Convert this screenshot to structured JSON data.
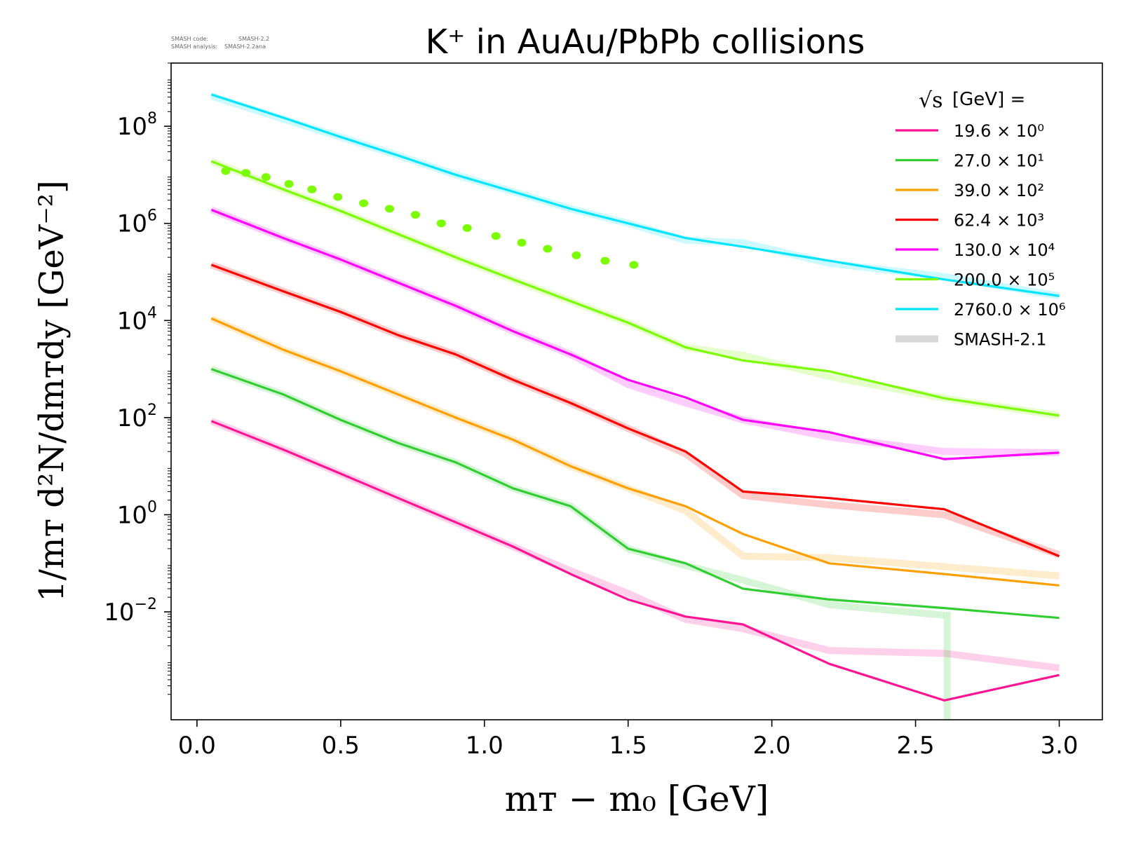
{
  "meta": {
    "code_label": "SMASH code:",
    "code_value": "SMASH-2.2",
    "analysis_label": "SMASH analysis:",
    "analysis_value": "SMASH-2.2ana"
  },
  "chart_data": {
    "type": "line",
    "title": "K⁺ in AuAu/PbPb collisions",
    "xlabel": "mᴛ − m₀  [GeV]",
    "ylabel": "1/mᴛ d²N/dmᴛdy  [GeV⁻²]",
    "x_scale": "linear",
    "y_scale": "log",
    "xlim": [
      -0.09,
      3.15
    ],
    "ylim": [
      6e-05,
      2000000000
    ],
    "x_ticks": [
      {
        "value": 0.0,
        "label": "0.0"
      },
      {
        "value": 0.5,
        "label": "0.5"
      },
      {
        "value": 1.0,
        "label": "1.0"
      },
      {
        "value": 1.5,
        "label": "1.5"
      },
      {
        "value": 2.0,
        "label": "2.0"
      },
      {
        "value": 2.5,
        "label": "2.5"
      },
      {
        "value": 3.0,
        "label": "3.0"
      }
    ],
    "y_ticks": [
      {
        "value": 0.01,
        "base": "10",
        "exp": "−2"
      },
      {
        "value": 1,
        "base": "10",
        "exp": "0"
      },
      {
        "value": 100,
        "base": "10",
        "exp": "2"
      },
      {
        "value": 10000,
        "base": "10",
        "exp": "4"
      },
      {
        "value": 1000000,
        "base": "10",
        "exp": "6"
      },
      {
        "value": 100000000,
        "base": "10",
        "exp": "8"
      }
    ],
    "grid": false,
    "legend": {
      "placement": "top-right",
      "title_prefix": "√s",
      "title_suffix": " [GeV] =",
      "reference_label": "SMASH-2.1",
      "reference_color": "#d8d8d8"
    },
    "series": [
      {
        "name": "19.6 × 10⁰",
        "color": "#ff1493",
        "x": [
          0.05,
          0.3,
          0.5,
          0.7,
          0.9,
          1.1,
          1.3,
          1.5,
          1.7,
          1.9,
          2.2,
          2.6,
          3.0
        ],
        "y": [
          85,
          22,
          7,
          2.2,
          0.7,
          0.22,
          0.06,
          0.018,
          0.008,
          0.0055,
          0.00085,
          0.00015,
          0.0005
        ],
        "ref_y": [
          85,
          22,
          7,
          2.2,
          0.7,
          0.22,
          0.07,
          0.024,
          0.007,
          0.0045,
          0.0016,
          0.0014,
          0.0007
        ]
      },
      {
        "name": "27.0 × 10¹",
        "color": "#32cd32",
        "x": [
          0.05,
          0.3,
          0.5,
          0.7,
          0.9,
          1.1,
          1.3,
          1.5,
          1.7,
          1.9,
          2.2,
          2.6,
          3.0
        ],
        "y": [
          1000,
          300,
          90,
          30,
          12,
          3.5,
          1.5,
          0.2,
          0.1,
          0.03,
          0.018,
          0.012,
          0.0075
        ],
        "ref_y": [
          1000,
          300,
          90,
          30,
          12,
          3.5,
          1.5,
          0.2,
          0.09,
          0.045,
          0.014,
          0.0085
        ],
        "ref_tail": {
          "x": [
            2.6,
            2.61,
            2.61
          ],
          "y": [
            0.0085,
            0.0085,
            6e-05
          ]
        }
      },
      {
        "name": "39.0 × 10²",
        "color": "#ff9f00",
        "x": [
          0.05,
          0.3,
          0.5,
          0.7,
          0.9,
          1.1,
          1.3,
          1.5,
          1.7,
          1.9,
          2.2,
          2.6,
          3.0
        ],
        "y": [
          11000,
          2500,
          900,
          300,
          100,
          35,
          10,
          3.5,
          1.5,
          0.4,
          0.1,
          0.06,
          0.035
        ],
        "ref_y": [
          11000,
          2500,
          900,
          300,
          100,
          35,
          10,
          3.5,
          1.2,
          0.14,
          0.13,
          0.085,
          0.055
        ]
      },
      {
        "name": "62.4 × 10³",
        "color": "#ff0000",
        "x": [
          0.05,
          0.3,
          0.5,
          0.7,
          0.9,
          1.1,
          1.3,
          1.5,
          1.7,
          1.9,
          2.2,
          2.6,
          3.0
        ],
        "y": [
          140000,
          40000,
          15000,
          5000,
          2000,
          600,
          200,
          60,
          20,
          3,
          2.2,
          1.3,
          0.14
        ],
        "ref_y": [
          140000,
          40000,
          15000,
          5000,
          2000,
          600,
          200,
          60,
          18,
          2.5,
          1.6,
          1.0,
          0.15
        ]
      },
      {
        "name": "130.0 × 10⁴",
        "color": "#ff00ff",
        "x": [
          0.05,
          0.3,
          0.5,
          0.7,
          0.9,
          1.1,
          1.3,
          1.5,
          1.7,
          1.9,
          2.2,
          2.6,
          3.0
        ],
        "y": [
          1900000,
          500000,
          180000,
          60000,
          20000,
          6000,
          2000,
          600,
          260,
          90,
          50,
          14,
          19
        ],
        "ref_y": [
          1900000,
          500000,
          180000,
          60000,
          20000,
          6000,
          2000,
          480,
          200,
          90,
          40,
          20,
          19
        ]
      },
      {
        "name": "200.0 × 10⁵",
        "color": "#7cfc00",
        "x": [
          0.05,
          0.3,
          0.5,
          0.7,
          0.9,
          1.1,
          1.3,
          1.5,
          1.7,
          1.9,
          2.2,
          2.6,
          3.0
        ],
        "y": [
          19000000,
          5000000,
          1800000,
          600000,
          200000,
          70000,
          25000,
          9000,
          2800,
          1500,
          900,
          250,
          110
        ],
        "ref_y": [
          19000000,
          5000000,
          1800000,
          600000,
          200000,
          70000,
          25000,
          9000,
          2800,
          1900,
          700,
          250,
          110
        ],
        "markers": {
          "x": [
            0.1,
            0.17,
            0.24,
            0.32,
            0.4,
            0.49,
            0.58,
            0.67,
            0.76,
            0.85,
            0.94,
            1.04,
            1.13,
            1.22,
            1.32,
            1.42,
            1.52
          ],
          "y": [
            12000000,
            11000000,
            9000000,
            6500000,
            5000000,
            3500000,
            2600000,
            2000000,
            1500000,
            1000000,
            800000,
            550000,
            400000,
            300000,
            220000,
            170000,
            140000
          ]
        }
      },
      {
        "name": "2760.0 × 10⁶",
        "color": "#00e5ff",
        "x": [
          0.05,
          0.3,
          0.5,
          0.7,
          0.9,
          1.1,
          1.3,
          1.5,
          1.7,
          1.9,
          2.2,
          2.6,
          3.0
        ],
        "y": [
          450000000,
          150000000,
          60000000,
          25000000,
          10000000,
          4500000,
          2000000,
          1000000,
          500000,
          330000,
          170000,
          70000,
          32000
        ],
        "ref_y": [
          420000000,
          140000000,
          60000000,
          25000000,
          10000000,
          4500000,
          2000000,
          1000000,
          450000,
          400000,
          150000,
          80000,
          32000
        ]
      }
    ]
  }
}
